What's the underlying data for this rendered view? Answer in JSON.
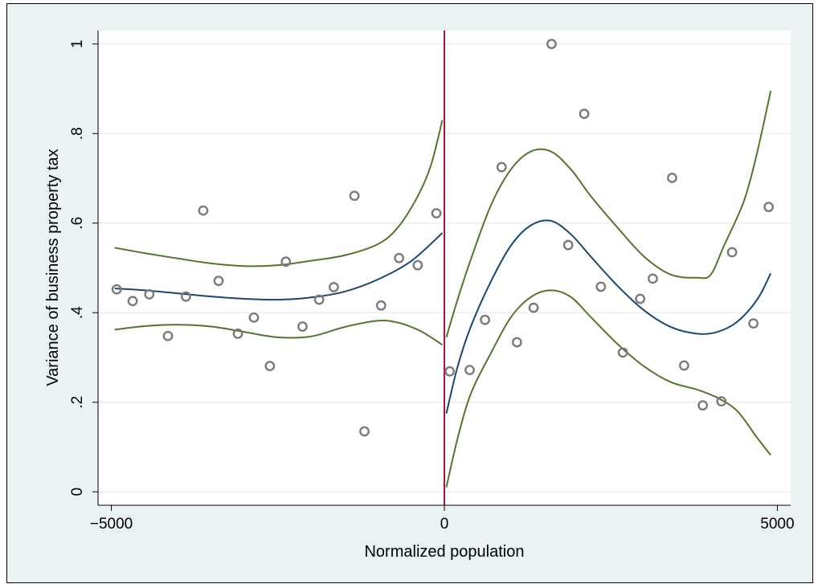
{
  "chart_data": {
    "type": "scatter",
    "title": "",
    "xlabel": "Normalized population",
    "ylabel": "Variance of business property tax",
    "xlim": [
      -5200,
      5200
    ],
    "ylim": [
      -0.03,
      1.03
    ],
    "grid": true,
    "x_ticks": [
      -5000,
      0,
      5000
    ],
    "x_tick_labels": [
      "−5000",
      "0",
      "5000"
    ],
    "y_ticks": [
      0,
      0.2,
      0.4,
      0.6,
      0.8,
      1
    ],
    "y_tick_labels": [
      "0",
      ".2",
      ".4",
      ".6",
      ".8",
      "1"
    ],
    "cutoff_x": 0,
    "colors": {
      "plot_bg": "#ffffff",
      "outer_bg": "#eaf2f3",
      "markers": "#7a7a7a",
      "fit": "#1a476f",
      "ci": "#55752f",
      "cutoff": "#b0103c",
      "grid": "#e6eceb"
    },
    "scatter": {
      "x": [
        -4920,
        -4680,
        -4430,
        -4150,
        -3880,
        -3620,
        -3390,
        -3100,
        -2860,
        -2620,
        -2380,
        -2130,
        -1880,
        -1660,
        -1350,
        -1200,
        -950,
        -680,
        -400,
        -120,
        80,
        380,
        610,
        860,
        1090,
        1340,
        1610,
        1860,
        2100,
        2350,
        2680,
        2940,
        3130,
        3420,
        3600,
        3880,
        4160,
        4320,
        4640,
        4870
      ],
      "y": [
        0.452,
        0.426,
        0.441,
        0.348,
        0.436,
        0.628,
        0.471,
        0.353,
        0.389,
        0.281,
        0.514,
        0.369,
        0.429,
        0.457,
        0.661,
        0.135,
        0.416,
        0.522,
        0.506,
        0.622,
        0.269,
        0.272,
        0.384,
        0.725,
        0.334,
        0.411,
        1.0,
        0.551,
        0.844,
        0.458,
        0.311,
        0.431,
        0.476,
        0.701,
        0.282,
        0.193,
        0.202,
        0.535,
        0.376,
        0.636
      ]
    },
    "series": [
      {
        "role": "fit",
        "segment": "left",
        "x": [
          -4950,
          -4500,
          -4000,
          -3500,
          -3000,
          -2500,
          -2000,
          -1500,
          -1000,
          -500,
          -30
        ],
        "y": [
          0.454,
          0.45,
          0.443,
          0.436,
          0.431,
          0.429,
          0.434,
          0.447,
          0.474,
          0.515,
          0.578
        ]
      },
      {
        "role": "ci-upper",
        "segment": "left",
        "x": [
          -4950,
          -4500,
          -4000,
          -3500,
          -3000,
          -2500,
          -2000,
          -1500,
          -1000,
          -700,
          -400,
          -200,
          -30
        ],
        "y": [
          0.545,
          0.533,
          0.521,
          0.51,
          0.504,
          0.506,
          0.516,
          0.528,
          0.553,
          0.59,
          0.66,
          0.73,
          0.83
        ]
      },
      {
        "role": "ci-lower",
        "segment": "left",
        "x": [
          -4950,
          -4500,
          -4000,
          -3500,
          -3000,
          -2500,
          -2000,
          -1500,
          -1000,
          -700,
          -400,
          -200,
          -30
        ],
        "y": [
          0.362,
          0.37,
          0.373,
          0.369,
          0.357,
          0.345,
          0.347,
          0.368,
          0.382,
          0.378,
          0.362,
          0.345,
          0.328
        ]
      },
      {
        "role": "fit",
        "segment": "right",
        "x": [
          30,
          200,
          400,
          700,
          1000,
          1300,
          1600,
          1900,
          2200,
          2600,
          3000,
          3400,
          3800,
          4100,
          4400,
          4700,
          4900
        ],
        "y": [
          0.175,
          0.28,
          0.37,
          0.47,
          0.55,
          0.595,
          0.605,
          0.575,
          0.525,
          0.46,
          0.405,
          0.368,
          0.353,
          0.357,
          0.38,
          0.43,
          0.488
        ]
      },
      {
        "role": "ci-upper",
        "segment": "right",
        "x": [
          30,
          200,
          400,
          700,
          1000,
          1300,
          1600,
          1900,
          2200,
          2600,
          3000,
          3400,
          3800,
          4000,
          4200,
          4500,
          4700,
          4900
        ],
        "y": [
          0.345,
          0.43,
          0.52,
          0.64,
          0.72,
          0.76,
          0.76,
          0.72,
          0.66,
          0.59,
          0.525,
          0.485,
          0.478,
          0.485,
          0.55,
          0.65,
          0.76,
          0.895
        ]
      },
      {
        "role": "ci-lower",
        "segment": "right",
        "x": [
          30,
          200,
          400,
          700,
          1000,
          1300,
          1600,
          1900,
          2200,
          2600,
          3000,
          3400,
          3800,
          4100,
          4400,
          4700,
          4900
        ],
        "y": [
          0.01,
          0.12,
          0.22,
          0.31,
          0.39,
          0.435,
          0.45,
          0.435,
          0.39,
          0.33,
          0.28,
          0.245,
          0.228,
          0.21,
          0.18,
          0.12,
          0.082
        ]
      }
    ]
  }
}
